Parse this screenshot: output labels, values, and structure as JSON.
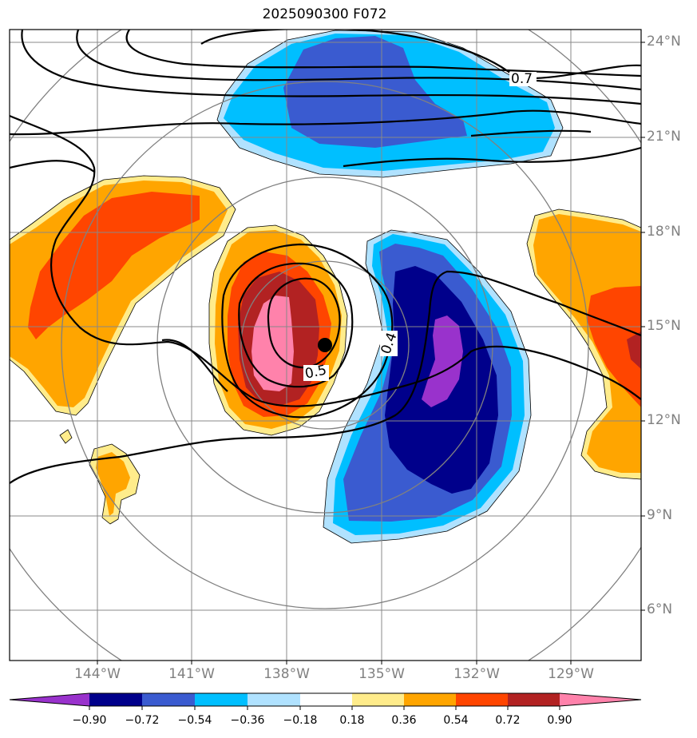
{
  "title": "2025090300 F072",
  "colors": {
    "frame": "#000000",
    "grid": "#888888",
    "contour": "#000000",
    "storm_marker": "#000000"
  },
  "latitude_labels": [
    "24°N",
    "21°N",
    "18°N",
    "15°N",
    "12°N",
    "9°N",
    "6°N"
  ],
  "longitude_labels": [
    "144°W",
    "141°W",
    "138°W",
    "135°W",
    "132°W",
    "129°W"
  ],
  "contour_labels": [
    "0.7",
    "0.5",
    "0.4"
  ],
  "colorbar": {
    "ticks": [
      "−0.90",
      "−0.72",
      "−0.54",
      "−0.36",
      "−0.18",
      "0.18",
      "0.36",
      "0.54",
      "0.72",
      "0.90"
    ],
    "colors": [
      "#9932CC",
      "#00008B",
      "#3A5BD0",
      "#00BFFF",
      "#B0E2FF",
      "#FFFFFF",
      "#FFEC8B",
      "#FFA500",
      "#FF4500",
      "#B22222",
      "#FF82AB"
    ]
  }
}
